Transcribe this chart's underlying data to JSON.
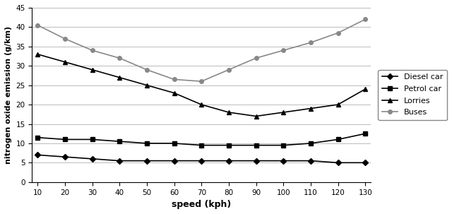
{
  "speed": [
    10,
    20,
    30,
    40,
    50,
    60,
    70,
    80,
    90,
    100,
    110,
    120,
    130
  ],
  "diesel_car": [
    7,
    6.5,
    6,
    5.5,
    5.5,
    5.5,
    5.5,
    5.5,
    5.5,
    5.5,
    5.5,
    5,
    5
  ],
  "petrol_car": [
    11.5,
    11,
    11,
    10.5,
    10,
    10,
    9.5,
    9.5,
    9.5,
    9.5,
    10,
    11,
    12.5
  ],
  "lorries": [
    33,
    31,
    29,
    27,
    25,
    23,
    20,
    18,
    17,
    18,
    19,
    20,
    24
  ],
  "buses": [
    40.5,
    37,
    34,
    32,
    29,
    26.5,
    26,
    29,
    32,
    34,
    36,
    38.5,
    42
  ],
  "xlabel": "speed (kph)",
  "ylabel": "nitrogen oxide emission (g/km)",
  "xlim_min": 8,
  "xlim_max": 132,
  "ylim": [
    0,
    45
  ],
  "yticks": [
    0,
    5,
    10,
    15,
    20,
    25,
    30,
    35,
    40,
    45
  ],
  "xticks": [
    10,
    20,
    30,
    40,
    50,
    60,
    70,
    80,
    90,
    100,
    110,
    120,
    130
  ],
  "legend_labels": [
    "Diesel car",
    "Petrol car",
    "Lorries",
    "Buses"
  ],
  "line_color": "#000000",
  "buses_color": "#888888",
  "marker_diesel": "D",
  "marker_petrol": "s",
  "marker_lorries": "^",
  "marker_buses": "o",
  "background_color": "#ffffff",
  "grid_color": "#bbbbbb",
  "figwidth": 6.4,
  "figheight": 3.03,
  "dpi": 100
}
